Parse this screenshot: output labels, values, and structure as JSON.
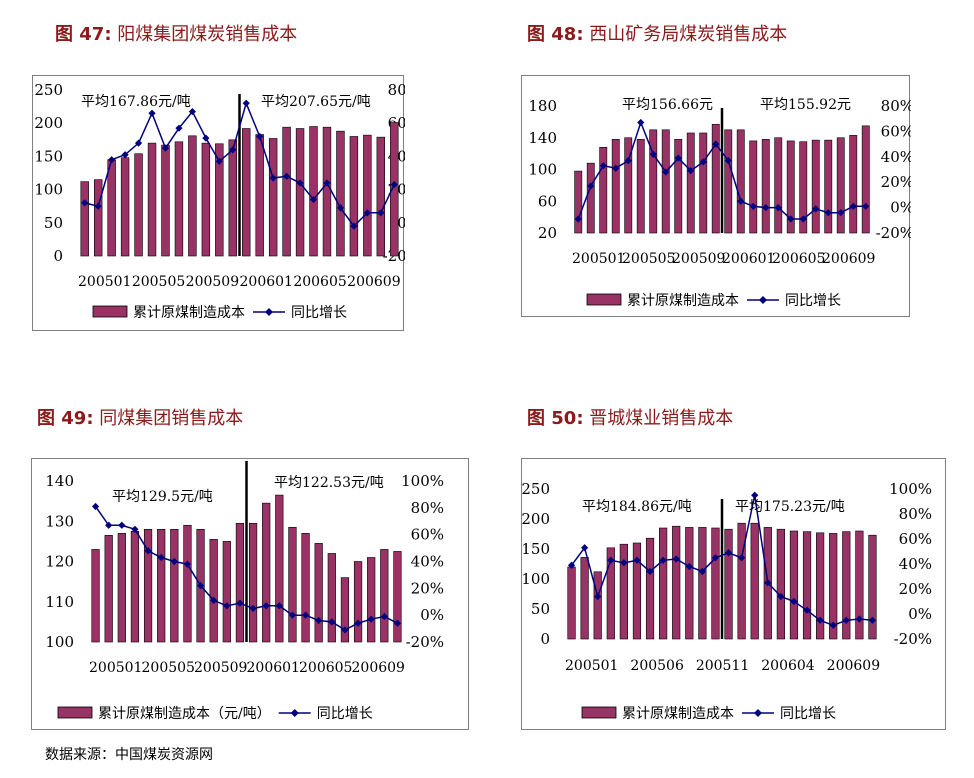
{
  "source": "数据来源：中国煤炭资源网",
  "chart_data": [
    {
      "type": "bar+line",
      "fig_label": "图 47:",
      "title": "阳煤集团煤炭销售成本",
      "categories": [
        "200501",
        "200502",
        "200503",
        "200504",
        "200505",
        "200506",
        "200507",
        "200508",
        "200509",
        "200510",
        "200511",
        "200512",
        "200601",
        "200602",
        "200603",
        "200604",
        "200605",
        "200606",
        "200607",
        "200608",
        "200609",
        "200610",
        "200611",
        "200612"
      ],
      "xtick_labels": [
        "200501",
        "200505",
        "200509",
        "200601",
        "200605",
        "200609"
      ],
      "bar_series": {
        "name": "累计原煤制造成本",
        "values": [
          112,
          115,
          145,
          148,
          154,
          170,
          167,
          172,
          181,
          170,
          169,
          175,
          192,
          183,
          177,
          194,
          192,
          195,
          194,
          188,
          180,
          182,
          179,
          201
        ]
      },
      "line_series": {
        "name": "同比增长",
        "values": [
          12,
          10,
          38,
          41,
          48,
          66,
          45,
          57,
          67,
          51,
          37,
          44,
          72,
          52,
          27,
          28,
          24,
          14,
          24,
          9,
          -2,
          6,
          6,
          23
        ]
      },
      "ylim_left": [
        0,
        250
      ],
      "yticks_left": [
        0,
        50,
        100,
        150,
        200,
        250
      ],
      "ylim_right": [
        -20,
        80
      ],
      "yticks_right": [
        "-20%",
        "0%",
        "20%",
        "40%",
        "60%",
        "80%"
      ],
      "annotations": [
        "平均167.86元/吨",
        "平均207.65元/吨"
      ],
      "legend": [
        "累计原煤制造成本",
        "同比增长"
      ]
    },
    {
      "type": "bar+line",
      "fig_label": "图 48:",
      "title": "西山矿务局煤炭销售成本",
      "categories": [
        "200501",
        "200502",
        "200503",
        "200504",
        "200505",
        "200506",
        "200507",
        "200508",
        "200509",
        "200510",
        "200511",
        "200512",
        "200601",
        "200602",
        "200603",
        "200604",
        "200605",
        "200606",
        "200607",
        "200608",
        "200609",
        "200610",
        "200611",
        "200612"
      ],
      "xtick_labels": [
        "200501",
        "200505",
        "200509",
        "200601",
        "200605",
        "200609"
      ],
      "bar_series": {
        "name": "累计原煤制造成本",
        "values": [
          98,
          108,
          128,
          138,
          140,
          138,
          150,
          150,
          138,
          146,
          146,
          157,
          150,
          150,
          136,
          138,
          140,
          136,
          135,
          137,
          137,
          140,
          143,
          155
        ]
      },
      "line_series": {
        "name": "同比增长",
        "values": [
          -9,
          17,
          33,
          31,
          37,
          67,
          42,
          28,
          39,
          29,
          36,
          50,
          37,
          5,
          1,
          0,
          0,
          -9,
          -9,
          -1,
          -4,
          -4,
          1,
          1
        ]
      },
      "ylim_left": [
        20,
        180
      ],
      "yticks_left": [
        20,
        60,
        100,
        140,
        180
      ],
      "ylim_right": [
        -20,
        80
      ],
      "yticks_right": [
        "-20%",
        "0%",
        "20%",
        "40%",
        "60%",
        "80%"
      ],
      "annotations": [
        "平均156.66元",
        "平均155.92元"
      ],
      "legend": [
        "累计原煤制造成本",
        "同比增长"
      ]
    },
    {
      "type": "bar+line",
      "fig_label": "图 49:",
      "title": "同煤集团销售成本",
      "categories": [
        "200501",
        "200502",
        "200503",
        "200504",
        "200505",
        "200506",
        "200507",
        "200508",
        "200509",
        "200510",
        "200511",
        "200512",
        "200601",
        "200602",
        "200603",
        "200604",
        "200605",
        "200606",
        "200607",
        "200608",
        "200609",
        "200610",
        "200611",
        "200612"
      ],
      "xtick_labels": [
        "200501",
        "200505",
        "200509",
        "200601",
        "200605",
        "200609"
      ],
      "bar_series": {
        "name": "累计原煤制造成本（元/吨）",
        "values": [
          123,
          126.5,
          127,
          127.5,
          128,
          128,
          128,
          129,
          128,
          125.5,
          125,
          129.5,
          129.5,
          134.5,
          136.5,
          128.5,
          127,
          124.5,
          122,
          116,
          120,
          121,
          123,
          122.5
        ]
      },
      "line_series": {
        "name": "同比增长",
        "values": [
          81,
          67,
          67,
          64,
          48,
          43,
          40,
          38,
          22,
          11,
          7,
          9,
          5,
          7,
          7,
          0,
          0,
          -4,
          -5,
          -11,
          -6,
          -3,
          -1,
          -6
        ]
      },
      "ylim_left": [
        100,
        140
      ],
      "yticks_left": [
        100,
        110,
        120,
        130,
        140
      ],
      "ylim_right": [
        -20,
        100
      ],
      "yticks_right": [
        "-20%",
        "0%",
        "20%",
        "40%",
        "60%",
        "80%",
        "100%"
      ],
      "annotations": [
        "平均129.5元/吨",
        "平均122.53元/吨"
      ],
      "legend": [
        "累计原煤制造成本（元/吨）",
        "同比增长"
      ]
    },
    {
      "type": "bar+line",
      "fig_label": "图 50:",
      "title": "晋城煤业销售成本",
      "categories": [
        "200501",
        "200502",
        "200503",
        "200504",
        "200505",
        "200506",
        "200507",
        "200508",
        "200509",
        "200510",
        "200511",
        "200512",
        "200601",
        "200602",
        "200603",
        "200604",
        "200605",
        "200606",
        "200607",
        "200608",
        "200609",
        "200610",
        "200611",
        "200612"
      ],
      "xtick_labels": [
        "200501",
        "200506",
        "200511",
        "200604",
        "200609"
      ],
      "bar_series": {
        "name": "累计原煤制造成本",
        "values": [
          120,
          136,
          112,
          152,
          158,
          160,
          168,
          185,
          188,
          186,
          186,
          185,
          183,
          193,
          193,
          186,
          183,
          180,
          179,
          177,
          176,
          179,
          180,
          173
        ]
      },
      "line_series": {
        "name": "同比增长",
        "values": [
          39,
          53,
          14,
          43,
          41,
          43,
          34,
          43,
          44,
          38,
          34,
          45,
          49,
          45,
          95,
          25,
          14,
          10,
          3,
          -5,
          -9,
          -5,
          -4,
          -5
        ]
      },
      "ylim_left": [
        0,
        250
      ],
      "yticks_left": [
        0,
        50,
        100,
        150,
        200,
        250
      ],
      "ylim_right": [
        -20,
        100
      ],
      "yticks_right": [
        "-20%",
        "0%",
        "20%",
        "40%",
        "60%",
        "80%",
        "100%"
      ],
      "annotations": [
        "平均184.86元/吨",
        "平均175.23元/吨"
      ],
      "legend": [
        "累计原煤制造成本",
        "同比增长"
      ]
    }
  ]
}
